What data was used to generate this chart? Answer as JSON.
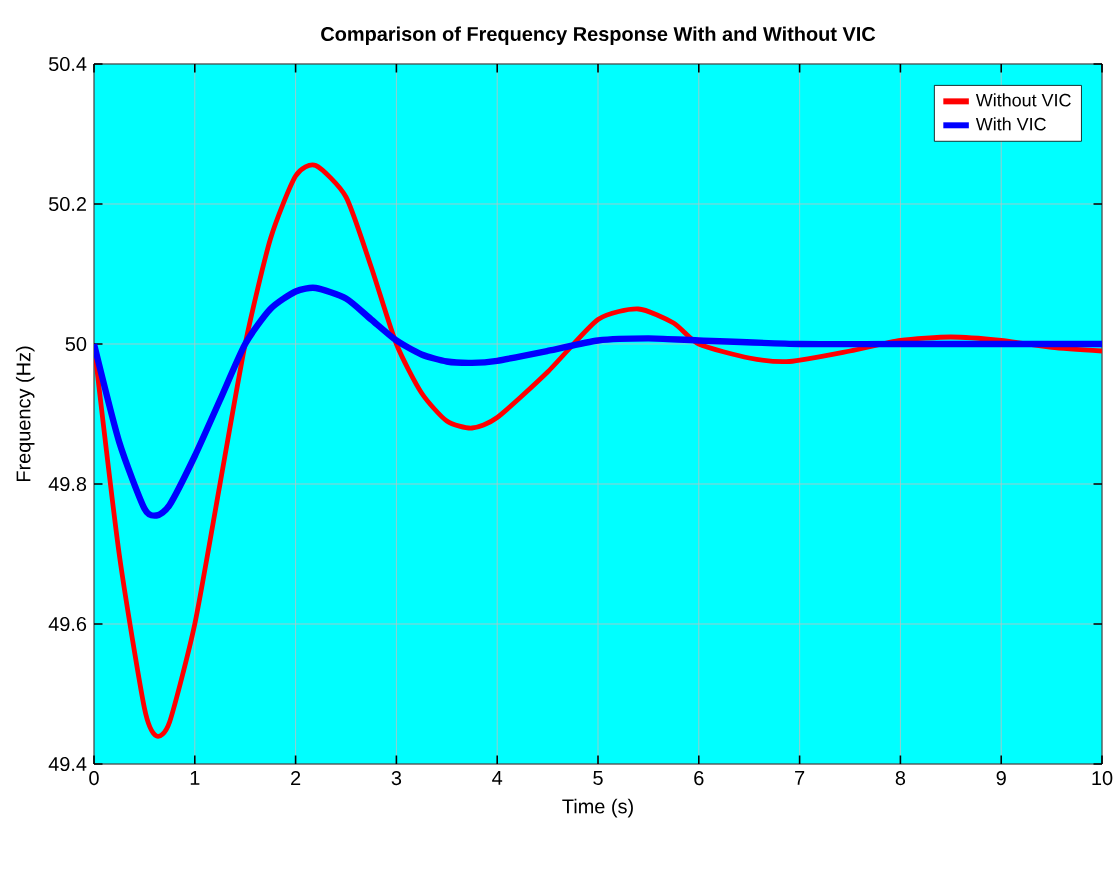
{
  "chart_data": {
    "type": "line",
    "title": "Comparison of Frequency Response With and Without VIC",
    "xlabel": "Time (s)",
    "ylabel": "Frequency (Hz)",
    "xlim": [
      0,
      10
    ],
    "ylim": [
      49.4,
      50.4
    ],
    "xticks": [
      0,
      1,
      2,
      3,
      4,
      5,
      6,
      7,
      8,
      9,
      10
    ],
    "yticks": [
      {
        "value": 49.4,
        "label": "49.4"
      },
      {
        "value": 49.6,
        "label": "49.6"
      },
      {
        "value": 49.8,
        "label": "49.8"
      },
      {
        "value": 50,
        "label": "50"
      },
      {
        "value": 50.2,
        "label": "50.2"
      },
      {
        "value": 50.4,
        "label": "50.4"
      }
    ],
    "grid": true,
    "legend": "top right",
    "line_style": "solid",
    "marker": "none",
    "series": [
      {
        "name": "Without VIC",
        "color": "#ff0000",
        "x": [
          0,
          0.25,
          0.5,
          0.62,
          0.75,
          1.0,
          1.25,
          1.5,
          1.75,
          2.0,
          2.2,
          2.5,
          2.75,
          3.0,
          3.25,
          3.5,
          3.75,
          4.0,
          4.5,
          5.0,
          5.4,
          5.75,
          6.0,
          6.5,
          6.9,
          7.5,
          8.0,
          8.5,
          9.0,
          9.5,
          10
        ],
        "values": [
          50,
          49.7,
          49.48,
          49.44,
          49.46,
          49.6,
          49.8,
          50.0,
          50.15,
          50.24,
          50.255,
          50.21,
          50.11,
          50.0,
          49.93,
          49.89,
          49.88,
          49.895,
          49.96,
          50.035,
          50.05,
          50.03,
          50.0,
          49.98,
          49.975,
          49.99,
          50.005,
          50.01,
          50.005,
          49.995,
          49.99
        ]
      },
      {
        "name": "With VIC",
        "color": "#0000ff",
        "x": [
          0,
          0.25,
          0.5,
          0.62,
          0.75,
          1.0,
          1.25,
          1.5,
          1.75,
          2.0,
          2.2,
          2.5,
          2.75,
          3.0,
          3.25,
          3.5,
          3.75,
          4.0,
          4.5,
          5.0,
          5.5,
          6.0,
          7.0,
          8.0,
          10
        ],
        "values": [
          50,
          49.86,
          49.765,
          49.755,
          49.77,
          49.84,
          49.92,
          50.0,
          50.05,
          50.075,
          50.08,
          50.065,
          50.035,
          50.005,
          49.985,
          49.975,
          49.973,
          49.976,
          49.99,
          50.005,
          50.008,
          50.005,
          50.0,
          50.0,
          50.0
        ]
      }
    ]
  }
}
